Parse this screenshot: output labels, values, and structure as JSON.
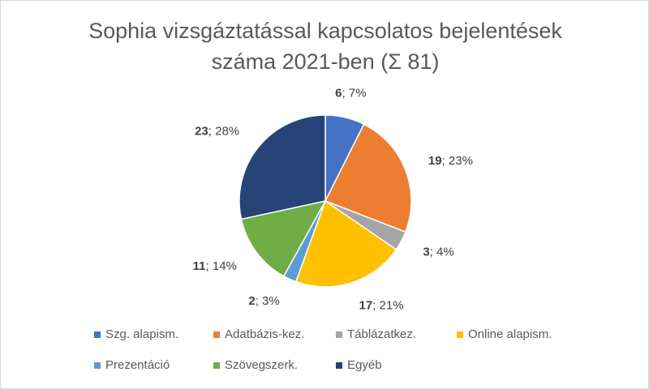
{
  "chart_data": {
    "type": "pie",
    "title": "Sophia vizsgáztatással kapcsolatos bejelentések száma 2021-ben (Σ  81)",
    "categories": [
      "Szg. alapism.",
      "Adatbázis-kez.",
      "Táblázatkez.",
      "Online alapism.",
      "Prezentáció",
      "Szövegszerk.",
      "Egyéb"
    ],
    "values": [
      6,
      19,
      3,
      17,
      2,
      11,
      23
    ],
    "label_separator": "; ",
    "percent_labels": [
      "7%",
      "23%",
      "4%",
      "21%",
      "3%",
      "14%",
      "28%"
    ],
    "colors": [
      "#4472c4",
      "#ed7d31",
      "#a5a5a5",
      "#ffc000",
      "#5b9bd5",
      "#70ad47",
      "#264478"
    ],
    "legend": "bottom"
  }
}
